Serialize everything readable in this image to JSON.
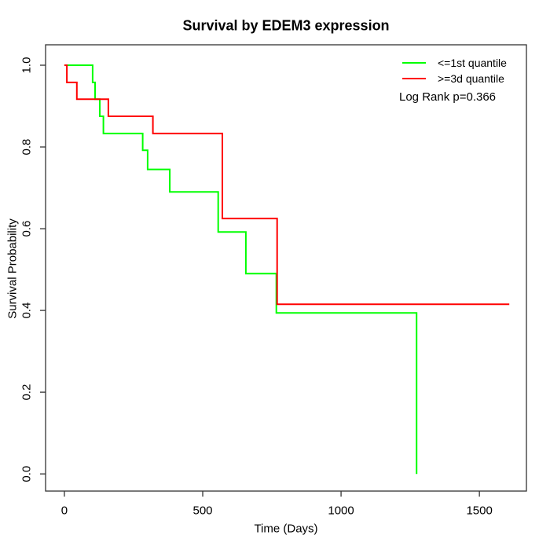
{
  "chart_data": {
    "type": "line",
    "subtype": "kaplan-meier-step",
    "title": "Survival by EDEM3 expression",
    "xlabel": "Time (Days)",
    "ylabel": "Survival Probability",
    "xlim": [
      0,
      1600
    ],
    "ylim": [
      0.0,
      1.0
    ],
    "x_ticks": [
      0,
      500,
      1000,
      1500
    ],
    "x_tick_labels": [
      "0",
      "500",
      "1000",
      "1500"
    ],
    "y_ticks": [
      0.0,
      0.2,
      0.4,
      0.6,
      0.8,
      1.0
    ],
    "y_tick_labels": [
      "0.0",
      "0.2",
      "0.4",
      "0.6",
      "0.8",
      "1.0"
    ],
    "grid": false,
    "legend_position": "top-right-inside",
    "annotation": "Log Rank p=0.366",
    "axis_color": "#333333",
    "series": [
      {
        "id": "first-quantile",
        "name": "<=1st quantile",
        "color": "#00ff00",
        "end_time": 1273,
        "points": [
          [
            0,
            1.0
          ],
          [
            102,
            0.958
          ],
          [
            111,
            0.917
          ],
          [
            128,
            0.875
          ],
          [
            141,
            0.833
          ],
          [
            283,
            0.792
          ],
          [
            301,
            0.745
          ],
          [
            381,
            0.69
          ],
          [
            556,
            0.592
          ],
          [
            656,
            0.49
          ],
          [
            766,
            0.394
          ],
          [
            1273,
            0.0
          ]
        ]
      },
      {
        "id": "third-quantile",
        "name": ">=3d quantile",
        "color": "#ff0000",
        "end_time": 1608,
        "points": [
          [
            0,
            1.0
          ],
          [
            9,
            0.958
          ],
          [
            45,
            0.917
          ],
          [
            159,
            0.875
          ],
          [
            320,
            0.833
          ],
          [
            571,
            0.625
          ],
          [
            769,
            0.415
          ]
        ]
      }
    ]
  }
}
